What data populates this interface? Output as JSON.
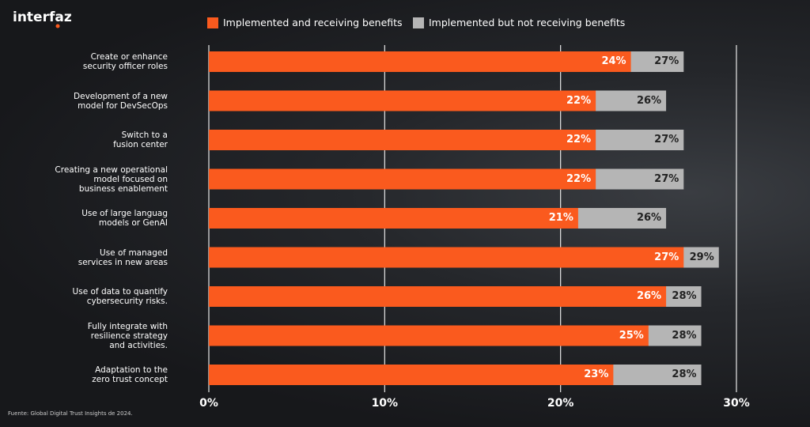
{
  "chart_data": {
    "type": "bar",
    "logo": "interfaz",
    "source": "Fuente: Global Digital Trust Insights de 2024.",
    "categories": [
      "Create or enhance\nsecurity officer roles",
      "Development of a new\nmodel for DevSecOps",
      "Switch to a\nfusion center",
      "Creating a new operational\nmodel focused on\nbusiness enablement",
      "Use of large languag\nmodels or GenAI",
      "Use of managed\nservices in new areas",
      "Use of data to quantify\ncybersecurity risks.",
      "Fully integrate with\nresilience strategy\nand activities.",
      "Adaptation to the\nzero trust concept"
    ],
    "series": [
      {
        "name": "Implemented and receiving benefits",
        "color": "#fa5a1e",
        "values": [
          24,
          22,
          22,
          22,
          21,
          27,
          26,
          25,
          23
        ],
        "value_labels": [
          "24%",
          "22%",
          "22%",
          "22%",
          "21%",
          "27%",
          "26%",
          "25%",
          "23%"
        ]
      },
      {
        "name": "Implemented but not receiving benefits",
        "color": "#b5b5b5",
        "values": [
          27,
          26,
          27,
          27,
          26,
          29,
          28,
          28,
          28
        ],
        "value_labels": [
          "27%",
          "26%",
          "27%",
          "27%",
          "26%",
          "29%",
          "28%",
          "28%",
          "28%"
        ]
      }
    ],
    "xlim": [
      0,
      30
    ],
    "xticks": [
      {
        "value": 0,
        "label": "0%"
      },
      {
        "value": 10,
        "label": "10%"
      },
      {
        "value": 20,
        "label": "20%"
      },
      {
        "value": 30,
        "label": "30%"
      }
    ],
    "grid": true
  }
}
